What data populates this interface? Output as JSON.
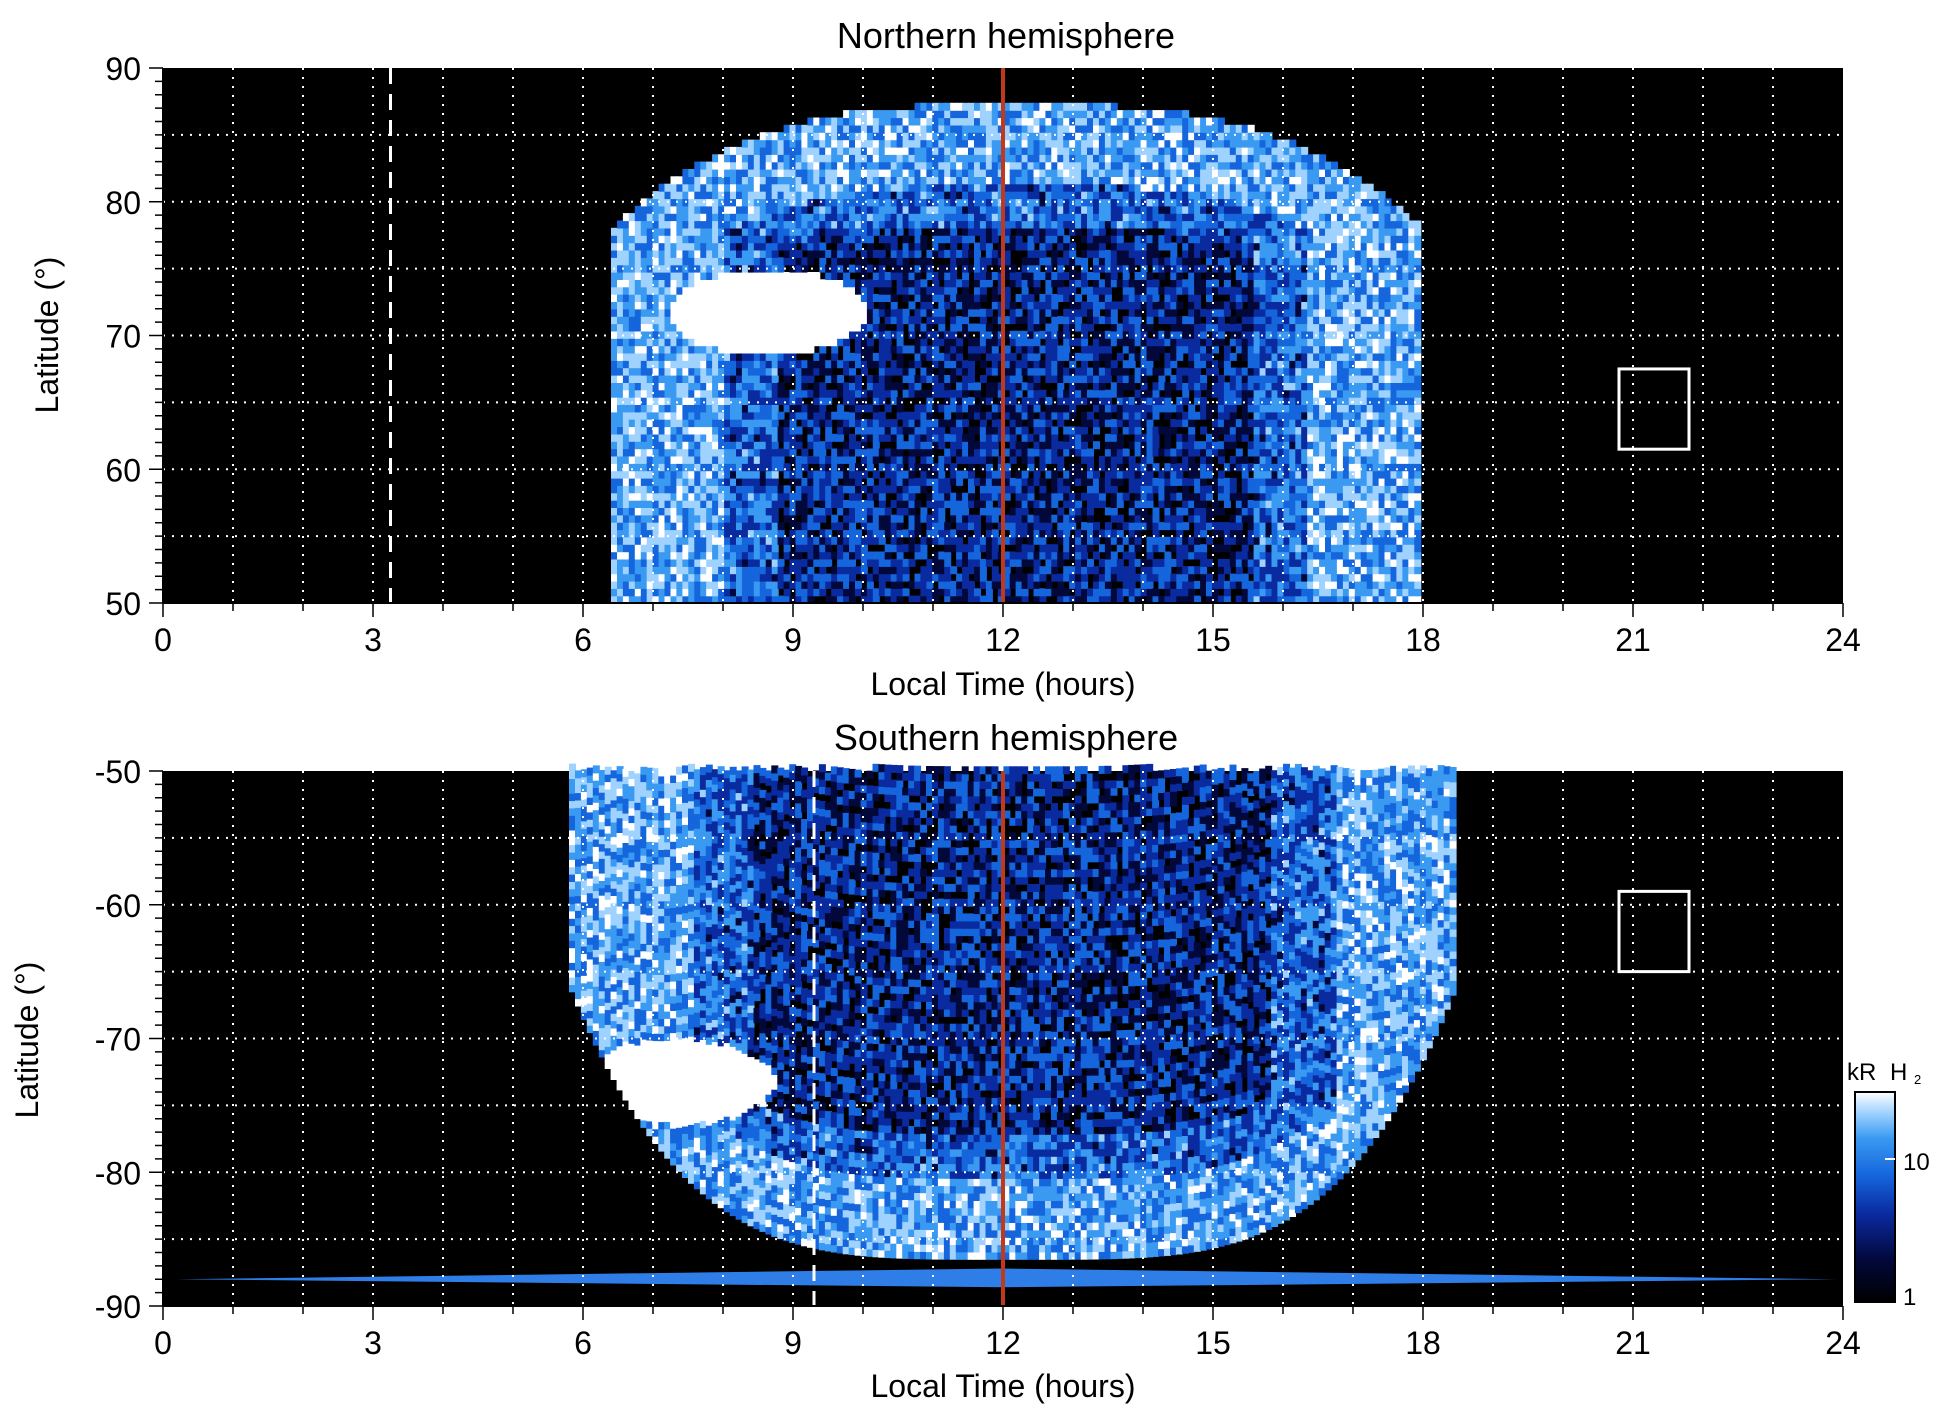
{
  "chart_data": [
    {
      "type": "heatmap",
      "title": "Northern hemisphere",
      "xlabel": "Local Time (hours)",
      "ylabel": "Latitude (°)",
      "xlim": [
        0,
        24
      ],
      "ylim": [
        50,
        90
      ],
      "x_ticks": [
        "0",
        "3",
        "6",
        "9",
        "12",
        "15",
        "18",
        "21",
        "24"
      ],
      "y_ticks": [
        "50",
        "60",
        "70",
        "80",
        "90"
      ],
      "grid": true,
      "noon_line_x": 12,
      "dashed_line_x": 3.25,
      "emission_extent": {
        "lt_min": 6.4,
        "lt_max": 17.9,
        "lat_edge": 87
      },
      "bright_patch": {
        "lt_center": 8.6,
        "lat_center": 71.5
      },
      "box": {
        "lt": [
          20.8,
          21.8
        ],
        "lat": [
          61.5,
          67.5
        ]
      }
    },
    {
      "type": "heatmap",
      "title": "Southern hemisphere",
      "xlabel": "Local Time (hours)",
      "ylabel": "Latitude (°)",
      "xlim": [
        0,
        24
      ],
      "ylim": [
        -90,
        -50
      ],
      "x_ticks": [
        "0",
        "3",
        "6",
        "9",
        "12",
        "15",
        "18",
        "21",
        "24"
      ],
      "y_ticks": [
        "-50",
        "-60",
        "-70",
        "-80",
        "-90"
      ],
      "grid": true,
      "noon_line_x": 12,
      "dashed_line_x": 9.3,
      "emission_extent": {
        "lt_min": 5.8,
        "lt_max": 18.4,
        "lat_edge": -90
      },
      "bright_patch": {
        "lt_center": 7.3,
        "lat_center": -73.5
      },
      "box": {
        "lt": [
          20.8,
          21.8
        ],
        "lat": [
          -65,
          -59
        ]
      }
    }
  ],
  "colorbar": {
    "label_kr": "kR",
    "label_species": "H",
    "label_sub": "2",
    "tick_high": "10",
    "tick_low": "1",
    "colors": [
      "#000000",
      "#02083a",
      "#0a2aa0",
      "#1565dc",
      "#3a9af2",
      "#9fd2ff",
      "#ffffff"
    ]
  },
  "colors": {
    "background": "#000000",
    "noon_line": "#c0391b",
    "grid": "#ffffff"
  }
}
